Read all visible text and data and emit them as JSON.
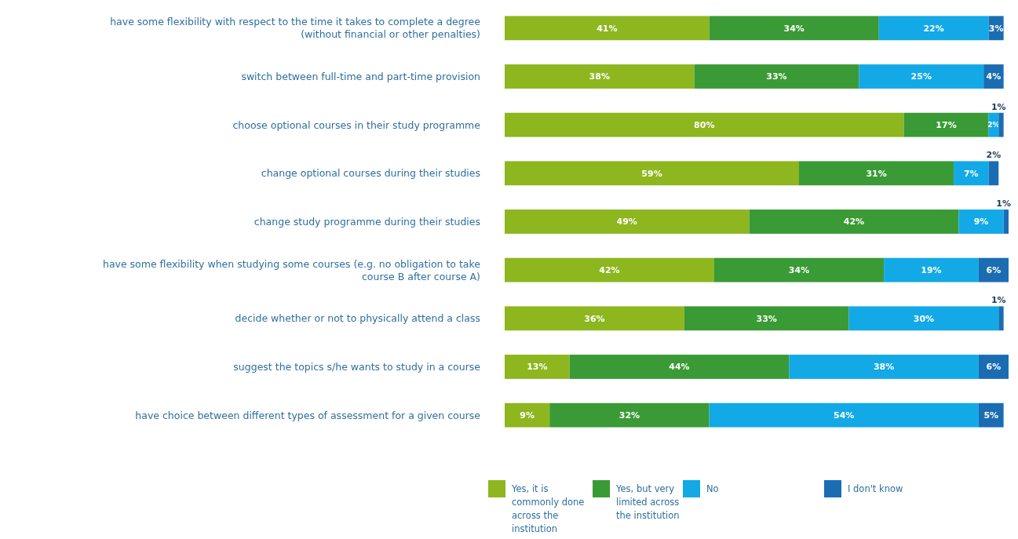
{
  "chart_data": {
    "type": "bar",
    "orientation": "horizontal",
    "stacked": true,
    "categories": [
      "have some flexibility with respect to the time it takes to complete a degree (without financial or other penalties)",
      "switch between full-time and part-time provision",
      "choose optional courses in their study programme",
      "change optional courses during their studies",
      "change study programme during their studies",
      "have some flexibility when studying some courses (e.g. no obligation to take course B after course A)",
      "decide whether or not to physically attend a class",
      "suggest the topics s/he wants to study in a course",
      "have choice between different types of assessment for a given course"
    ],
    "series": [
      {
        "name": "Yes, it is commonly done across the institution",
        "color": "#8db61f",
        "values": [
          41,
          38,
          80,
          59,
          49,
          42,
          36,
          13,
          9
        ],
        "value_labels": [
          "41%",
          "38%",
          "80%",
          "59%",
          "49%",
          "42%",
          "36%",
          "13%",
          "9%"
        ]
      },
      {
        "name": "Yes, but very limited across the institution",
        "color": "#3a9a35",
        "values": [
          34,
          33,
          17,
          31,
          42,
          34,
          33,
          44,
          32
        ],
        "value_labels": [
          "34%",
          "33%",
          "17%",
          "31%",
          "42%",
          "34%",
          "33%",
          "44%",
          "32%"
        ]
      },
      {
        "name": "No",
        "color": "#12a9e6",
        "values": [
          22,
          25,
          2,
          7,
          9,
          19,
          30,
          38,
          54
        ],
        "value_labels": [
          "22%",
          "25%",
          "2%",
          "7%",
          "9%",
          "19%",
          "30%",
          "38%",
          "54%"
        ]
      },
      {
        "name": "I don't know",
        "color": "#1a6db3",
        "values": [
          3,
          4,
          1,
          2,
          1,
          6,
          1,
          6,
          5
        ],
        "value_labels": [
          "3%",
          "4%",
          "1%",
          "2%",
          "1%",
          "6%",
          "1%",
          "6%",
          "5%"
        ]
      }
    ],
    "legend": "bottom"
  }
}
